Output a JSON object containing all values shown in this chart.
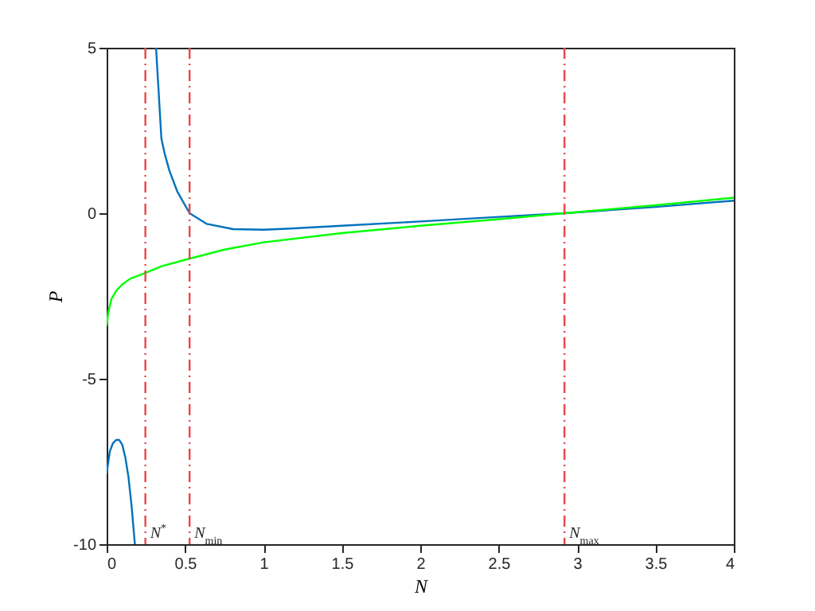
{
  "chart_data": {
    "type": "line",
    "xlabel": "N",
    "ylabel": "P",
    "xlim": [
      0,
      4
    ],
    "xticks": [
      0,
      0.5,
      1,
      1.5,
      2,
      2.5,
      3,
      3.5,
      4
    ],
    "ylim": [
      -10,
      5
    ],
    "yticks": [
      -10,
      -5,
      0,
      5
    ],
    "grid": false,
    "marker": "none",
    "line_style": "solid",
    "series": [
      {
        "color": "#0072bd",
        "x": [
          0,
          0.02,
          0.04,
          0.06,
          0.08,
          0.1,
          0.12,
          0.14,
          0.16,
          0.18,
          0.25,
          0.315,
          0.33,
          0.349,
          0.37,
          0.4,
          0.451,
          0.529,
          0.637,
          0.807,
          1.0,
          1.15,
          1.5,
          2,
          2.5,
          2.92,
          3.5,
          4
        ],
        "values": [
          -7.87,
          -7.2,
          -6.95,
          -6.85,
          -6.85,
          -7.0,
          -7.4,
          -8.0,
          -8.9,
          -10,
          null,
          5,
          3.8,
          2.26,
          1.8,
          1.29,
          0.65,
          0,
          -0.32,
          -0.48,
          -0.5,
          -0.47,
          -0.38,
          -0.25,
          -0.11,
          0,
          0.19,
          0.38
        ]
      },
      {
        "color": "#00ff00",
        "x": [
          0,
          0.01,
          0.03,
          0.06,
          0.1,
          0.15,
          0.25,
          0.35,
          0.53,
          0.75,
          1,
          1.5,
          2,
          2.5,
          2.92,
          3.5,
          4
        ],
        "values": [
          -3.4,
          -3.0,
          -2.6,
          -2.35,
          -2.15,
          -1.98,
          -1.8,
          -1.6,
          -1.37,
          -1.1,
          -0.88,
          -0.6,
          -0.38,
          -0.18,
          0,
          0.24,
          0.47
        ]
      }
    ],
    "ref_lines": [
      {
        "axis": "x",
        "value": 0.247,
        "label": "N$^{*}$",
        "color": "#e8474c",
        "line_style": "dashdot"
      },
      {
        "axis": "x",
        "value": 0.529,
        "label": "N$_{min}$",
        "color": "#e8474c",
        "line_style": "dashdot"
      },
      {
        "axis": "x",
        "value": 2.92,
        "label": "N$_{max}$",
        "color": "#e8474c",
        "line_style": "dashdot"
      }
    ]
  }
}
